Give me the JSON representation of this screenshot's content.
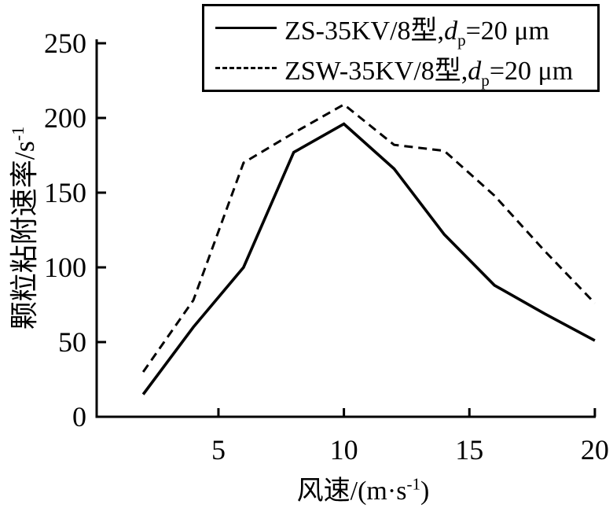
{
  "figure": {
    "background": "#ffffff",
    "ink_color": "#000000"
  },
  "legend": {
    "items": [
      {
        "prefix": "ZS-35KV/8型,",
        "var": "d",
        "sub": "p",
        "suffix": "=20 μm",
        "line": "solid"
      },
      {
        "prefix": "ZSW-35KV/8型,",
        "var": "d",
        "sub": "p",
        "suffix": "=20 μm",
        "line": "dashed"
      }
    ]
  },
  "axes": {
    "y_label": {
      "main": "颗粒粘附速率/s",
      "sup": "-1"
    },
    "x_label": {
      "main": "风速/(m·s",
      "sup": "-1",
      "close": ")"
    }
  },
  "chart_data": {
    "type": "line",
    "title": "",
    "xlabel": "风速/(m·s⁻¹)",
    "ylabel": "颗粒粘附速率/s⁻¹",
    "xlim": [
      0,
      20.3
    ],
    "ylim": [
      0,
      250
    ],
    "x_ticks": [
      5,
      10,
      15,
      20
    ],
    "y_ticks": [
      0,
      50,
      100,
      150,
      200,
      250
    ],
    "grid": false,
    "legend_position": "top-right-inside",
    "x": [
      2,
      4,
      6,
      8,
      10,
      12,
      14,
      16,
      18,
      20
    ],
    "series": [
      {
        "name": "ZS-35KV/8型,dp=20 μm",
        "style": "solid",
        "color": "#000000",
        "values": [
          15,
          60,
          100,
          177,
          196,
          166,
          122,
          88,
          69,
          51
        ]
      },
      {
        "name": "ZSW-35KV/8型,dp=20 μm",
        "style": "dashed",
        "color": "#000000",
        "values": [
          30,
          78,
          170,
          190,
          209,
          182,
          178,
          148,
          111,
          76
        ]
      }
    ]
  }
}
